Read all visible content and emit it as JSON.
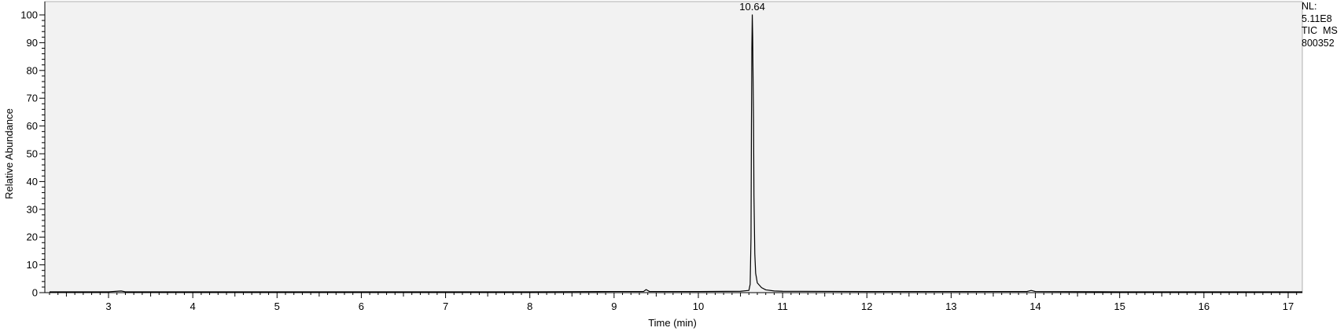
{
  "chart_data": {
    "type": "line",
    "title": "",
    "xlabel": "Time (min)",
    "ylabel": "Relative Abundance",
    "xlim": [
      2.3,
      17.2
    ],
    "ylim": [
      0,
      100
    ],
    "x_ticks": [
      3,
      4,
      5,
      6,
      7,
      8,
      9,
      10,
      11,
      12,
      13,
      14,
      15,
      16,
      17
    ],
    "y_ticks": [
      0,
      10,
      20,
      30,
      40,
      50,
      60,
      70,
      80,
      90,
      100
    ],
    "grid": false,
    "legend": "none",
    "colors": {
      "plot_bg": "#f2f2f2",
      "line": "#000000",
      "axis": "#000000"
    },
    "peak_annotations": [
      {
        "x": 10.64,
        "y": 100,
        "label": "10.64"
      }
    ],
    "series": [
      {
        "x": [
          2.3,
          3.0,
          3.15,
          3.2,
          3.3,
          4.0,
          5.0,
          6.0,
          7.0,
          8.0,
          9.0,
          9.35,
          9.38,
          9.42,
          10.0,
          10.5,
          10.6,
          10.615,
          10.625,
          10.63,
          10.635,
          10.64,
          10.645,
          10.65,
          10.655,
          10.66,
          10.67,
          10.68,
          10.7,
          10.75,
          10.8,
          10.9,
          11.0,
          12.0,
          13.0,
          13.9,
          13.95,
          14.0,
          15.0,
          16.0,
          17.0,
          17.2
        ],
        "y": [
          0.3,
          0.3,
          0.6,
          0.3,
          0.3,
          0.3,
          0.3,
          0.3,
          0.3,
          0.3,
          0.4,
          0.4,
          1.1,
          0.4,
          0.4,
          0.5,
          0.8,
          3,
          20,
          60,
          88,
          100,
          92,
          76,
          62,
          35,
          14,
          7,
          3.5,
          1.8,
          1.0,
          0.6,
          0.5,
          0.4,
          0.4,
          0.4,
          0.8,
          0.4,
          0.3,
          0.3,
          0.3,
          0.3
        ]
      }
    ]
  },
  "nl_info": [
    "NL:",
    "5.11E8",
    "TIC  MS",
    "800352"
  ]
}
